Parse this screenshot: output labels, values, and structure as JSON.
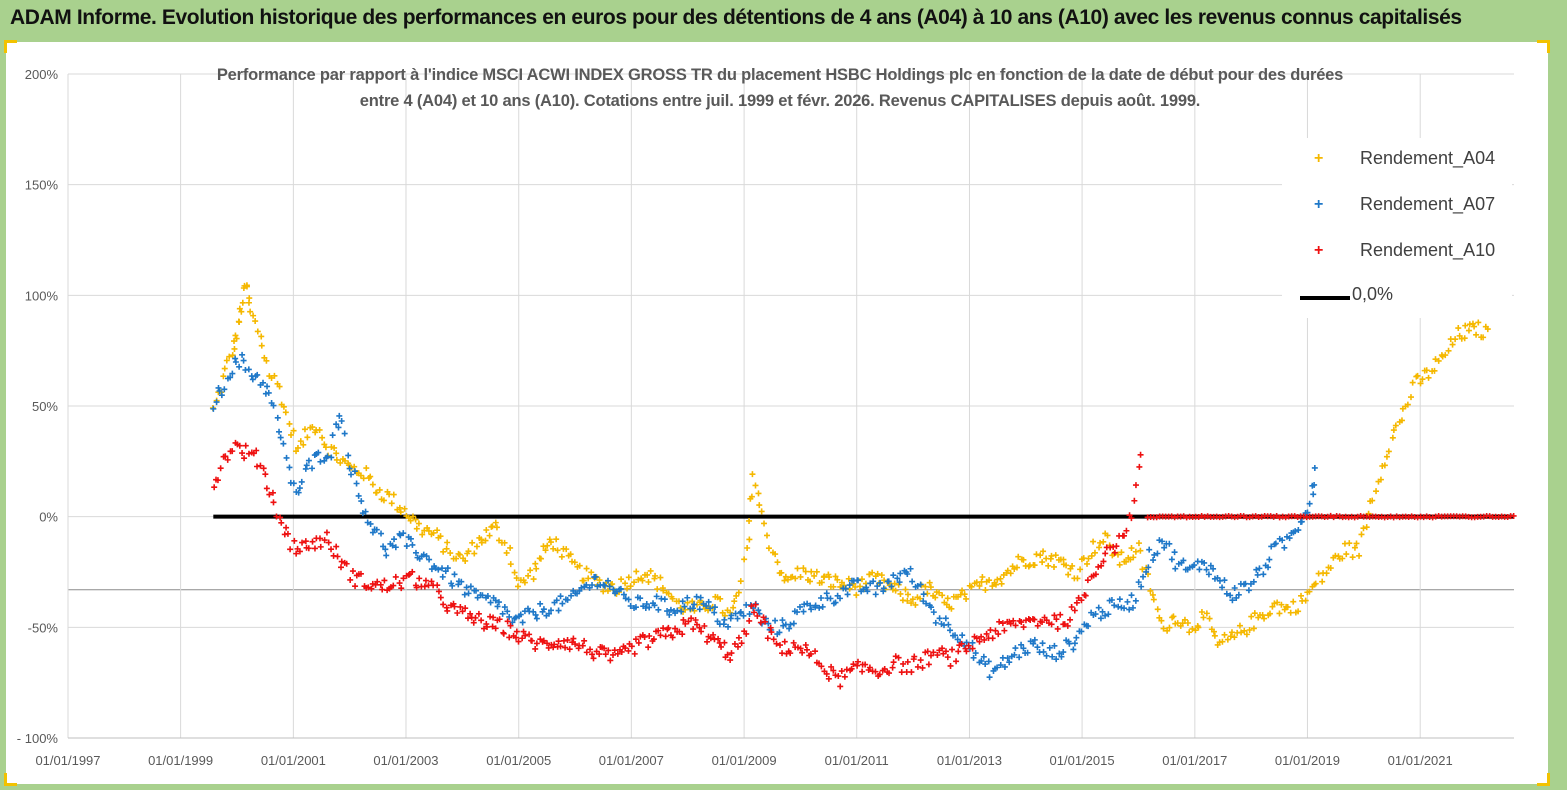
{
  "header": {
    "title": "ADAM Informe. Evolution historique des performances en euros pour des détentions de 4 ans (A04) à 10 ans (A10) avec les revenus connus capitalisés"
  },
  "colors": {
    "header_bg": "#a9d18e",
    "A04": "#f5b800",
    "A07": "#1f78c8",
    "A10": "#ee1111",
    "zero_line": "#000000"
  },
  "chart_data": {
    "type": "scatter",
    "title_line1": "Performance par rapport à l'indice MSCI ACWI INDEX GROSS TR  du placement HSBC Holdings plc en fonction de la date de début pour des durées",
    "title_line2": "entre 4 (A04) et 10 ans (A10). Cotations entre juil. 1999 et févr. 2026. Revenus CAPITALISES depuis août. 1999.",
    "xlabel": "",
    "ylabel": "",
    "y_ticks": [
      "200%",
      "150%",
      "100%",
      "50%",
      "0%",
      "-50%",
      "- 100%"
    ],
    "ylim": [
      -100,
      200
    ],
    "x_ticks": [
      "01/01/1997",
      "01/01/1999",
      "01/01/2001",
      "01/01/2003",
      "01/01/2005",
      "01/01/2007",
      "01/01/2009",
      "01/01/2011",
      "01/01/2013",
      "01/01/2015",
      "01/01/2017",
      "01/01/2019",
      "01/01/2021"
    ],
    "xlim": [
      "1997-01-01",
      "2022-09-01"
    ],
    "grid": "vertical and horizontal",
    "legend_position": "top-right",
    "series": [
      {
        "name": "Rendement_A04",
        "marker": "+",
        "points": [
          [
            "1999-08-01",
            48
          ],
          [
            "1999-10-01",
            62
          ],
          [
            "1999-12-01",
            75
          ],
          [
            "2000-01-01",
            82
          ],
          [
            "2000-02-01",
            95
          ],
          [
            "2000-03-01",
            105
          ],
          [
            "2000-04-01",
            92
          ],
          [
            "2000-06-01",
            82
          ],
          [
            "2000-08-01",
            65
          ],
          [
            "2000-10-01",
            58
          ],
          [
            "2000-12-01",
            42
          ],
          [
            "2001-02-01",
            30
          ],
          [
            "2001-04-01",
            38
          ],
          [
            "2001-06-01",
            42
          ],
          [
            "2001-08-01",
            32
          ],
          [
            "2001-10-01",
            28
          ],
          [
            "2002-01-01",
            22
          ],
          [
            "2002-04-01",
            20
          ],
          [
            "2002-07-01",
            12
          ],
          [
            "2002-10-01",
            8
          ],
          [
            "2003-01-01",
            2
          ],
          [
            "2003-04-01",
            -5
          ],
          [
            "2003-07-01",
            -8
          ],
          [
            "2003-10-01",
            -15
          ],
          [
            "2004-01-01",
            -20
          ],
          [
            "2004-04-01",
            -12
          ],
          [
            "2004-08-01",
            -5
          ],
          [
            "2004-11-01",
            -15
          ],
          [
            "2005-01-01",
            -32
          ],
          [
            "2005-04-01",
            -25
          ],
          [
            "2005-08-01",
            -10
          ],
          [
            "2005-11-01",
            -18
          ],
          [
            "2006-02-01",
            -25
          ],
          [
            "2006-06-01",
            -30
          ],
          [
            "2006-10-01",
            -32
          ],
          [
            "2007-01-01",
            -28
          ],
          [
            "2007-04-01",
            -25
          ],
          [
            "2007-08-01",
            -32
          ],
          [
            "2007-11-01",
            -40
          ],
          [
            "2008-03-01",
            -42
          ],
          [
            "2008-07-01",
            -38
          ],
          [
            "2008-10-01",
            -45
          ],
          [
            "2008-12-01",
            -35
          ],
          [
            "2009-02-01",
            -10
          ],
          [
            "2009-03-01",
            20
          ],
          [
            "2009-05-01",
            0
          ],
          [
            "2009-07-01",
            -15
          ],
          [
            "2009-10-01",
            -30
          ],
          [
            "2010-01-01",
            -25
          ],
          [
            "2010-05-01",
            -28
          ],
          [
            "2010-09-01",
            -30
          ],
          [
            "2011-01-01",
            -32
          ],
          [
            "2011-05-01",
            -28
          ],
          [
            "2011-09-01",
            -33
          ],
          [
            "2012-01-01",
            -38
          ],
          [
            "2012-04-01",
            -32
          ],
          [
            "2012-08-01",
            -40
          ],
          [
            "2012-12-01",
            -36
          ],
          [
            "2013-04-01",
            -30
          ],
          [
            "2013-08-01",
            -27
          ],
          [
            "2013-12-01",
            -20
          ],
          [
            "2014-04-01",
            -18
          ],
          [
            "2014-08-01",
            -20
          ],
          [
            "2014-12-01",
            -25
          ],
          [
            "2015-03-01",
            -15
          ],
          [
            "2015-06-01",
            -10
          ],
          [
            "2015-09-01",
            -20
          ],
          [
            "2016-01-01",
            -15
          ],
          [
            "2016-04-01",
            -35
          ],
          [
            "2016-06-01",
            -50
          ],
          [
            "2016-09-01",
            -45
          ],
          [
            "2016-12-01",
            -50
          ],
          [
            "2017-03-01",
            -45
          ],
          [
            "2017-06-01",
            -58
          ],
          [
            "2017-09-01",
            -55
          ],
          [
            "2017-12-01",
            -50
          ],
          [
            "2018-03-01",
            -45
          ],
          [
            "2018-06-01",
            -40
          ],
          [
            "2018-09-01",
            -42
          ],
          [
            "2018-12-01",
            -38
          ],
          [
            "2019-03-01",
            -30
          ],
          [
            "2019-06-01",
            -22
          ],
          [
            "2019-09-01",
            -15
          ],
          [
            "2019-12-01",
            -15
          ],
          [
            "2020-03-01",
            10
          ],
          [
            "2020-06-01",
            30
          ],
          [
            "2020-09-01",
            45
          ],
          [
            "2020-12-01",
            60
          ],
          [
            "2021-03-01",
            65
          ],
          [
            "2021-06-01",
            72
          ],
          [
            "2021-09-01",
            82
          ],
          [
            "2022-01-01",
            85
          ],
          [
            "2022-04-01",
            82
          ]
        ]
      },
      {
        "name": "Rendement_A07",
        "marker": "+",
        "points": [
          [
            "1999-08-01",
            52
          ],
          [
            "1999-10-01",
            58
          ],
          [
            "1999-12-01",
            68
          ],
          [
            "2000-02-01",
            70
          ],
          [
            "2000-04-01",
            65
          ],
          [
            "2000-06-01",
            62
          ],
          [
            "2000-08-01",
            55
          ],
          [
            "2000-10-01",
            40
          ],
          [
            "2000-12-01",
            20
          ],
          [
            "2001-02-01",
            10
          ],
          [
            "2001-04-01",
            22
          ],
          [
            "2001-07-01",
            28
          ],
          [
            "2001-09-01",
            30
          ],
          [
            "2001-11-01",
            48
          ],
          [
            "2002-01-01",
            25
          ],
          [
            "2002-03-01",
            10
          ],
          [
            "2002-06-01",
            -5
          ],
          [
            "2002-09-01",
            -15
          ],
          [
            "2002-12-01",
            -10
          ],
          [
            "2003-03-01",
            -15
          ],
          [
            "2003-06-01",
            -20
          ],
          [
            "2003-09-01",
            -25
          ],
          [
            "2003-12-01",
            -30
          ],
          [
            "2004-03-01",
            -35
          ],
          [
            "2004-06-01",
            -38
          ],
          [
            "2004-09-01",
            -40
          ],
          [
            "2004-12-01",
            -48
          ],
          [
            "2005-03-01",
            -45
          ],
          [
            "2005-06-01",
            -42
          ],
          [
            "2005-09-01",
            -40
          ],
          [
            "2005-12-01",
            -38
          ],
          [
            "2006-03-01",
            -32
          ],
          [
            "2006-06-01",
            -28
          ],
          [
            "2006-09-01",
            -32
          ],
          [
            "2006-12-01",
            -38
          ],
          [
            "2007-03-01",
            -40
          ],
          [
            "2007-06-01",
            -38
          ],
          [
            "2007-09-01",
            -42
          ],
          [
            "2007-12-01",
            -40
          ],
          [
            "2008-03-01",
            -38
          ],
          [
            "2008-06-01",
            -42
          ],
          [
            "2008-09-01",
            -48
          ],
          [
            "2008-12-01",
            -45
          ],
          [
            "2009-03-01",
            -40
          ],
          [
            "2009-06-01",
            -50
          ],
          [
            "2009-09-01",
            -50
          ],
          [
            "2009-12-01",
            -45
          ],
          [
            "2010-03-01",
            -40
          ],
          [
            "2010-06-01",
            -38
          ],
          [
            "2010-09-01",
            -35
          ],
          [
            "2010-12-01",
            -32
          ],
          [
            "2011-03-01",
            -32
          ],
          [
            "2011-06-01",
            -33
          ],
          [
            "2011-09-01",
            -28
          ],
          [
            "2011-12-01",
            -25
          ],
          [
            "2012-03-01",
            -35
          ],
          [
            "2012-06-01",
            -45
          ],
          [
            "2012-09-01",
            -50
          ],
          [
            "2012-12-01",
            -55
          ],
          [
            "2013-03-01",
            -65
          ],
          [
            "2013-06-01",
            -70
          ],
          [
            "2013-09-01",
            -65
          ],
          [
            "2013-12-01",
            -60
          ],
          [
            "2014-03-01",
            -58
          ],
          [
            "2014-06-01",
            -62
          ],
          [
            "2014-09-01",
            -60
          ],
          [
            "2014-12-01",
            -55
          ],
          [
            "2015-03-01",
            -45
          ],
          [
            "2015-06-01",
            -42
          ],
          [
            "2015-09-01",
            -40
          ],
          [
            "2015-12-01",
            -38
          ],
          [
            "2016-03-01",
            -20
          ],
          [
            "2016-06-01",
            -10
          ],
          [
            "2016-09-01",
            -20
          ],
          [
            "2016-12-01",
            -25
          ],
          [
            "2017-03-01",
            -20
          ],
          [
            "2017-06-01",
            -28
          ],
          [
            "2017-09-01",
            -35
          ],
          [
            "2017-12-01",
            -32
          ],
          [
            "2018-03-01",
            -25
          ],
          [
            "2018-06-01",
            -15
          ],
          [
            "2018-09-01",
            -10
          ],
          [
            "2018-12-01",
            0
          ],
          [
            "2019-02-01",
            10
          ],
          [
            "2019-03-01",
            25
          ]
        ]
      },
      {
        "name": "Rendement_A10",
        "marker": "+",
        "points": [
          [
            "1999-08-01",
            15
          ],
          [
            "1999-10-01",
            25
          ],
          [
            "1999-12-01",
            32
          ],
          [
            "2000-02-01",
            30
          ],
          [
            "2000-04-01",
            28
          ],
          [
            "2000-06-01",
            25
          ],
          [
            "2000-08-01",
            12
          ],
          [
            "2000-10-01",
            0
          ],
          [
            "2000-12-01",
            -10
          ],
          [
            "2001-02-01",
            -15
          ],
          [
            "2001-05-01",
            -12
          ],
          [
            "2001-08-01",
            -10
          ],
          [
            "2001-11-01",
            -20
          ],
          [
            "2002-02-01",
            -28
          ],
          [
            "2002-05-01",
            -30
          ],
          [
            "2002-08-01",
            -32
          ],
          [
            "2002-11-01",
            -30
          ],
          [
            "2003-02-01",
            -28
          ],
          [
            "2003-05-01",
            -30
          ],
          [
            "2003-08-01",
            -35
          ],
          [
            "2003-11-01",
            -42
          ],
          [
            "2004-02-01",
            -45
          ],
          [
            "2004-06-01",
            -48
          ],
          [
            "2004-10-01",
            -50
          ],
          [
            "2005-02-01",
            -55
          ],
          [
            "2005-06-01",
            -58
          ],
          [
            "2005-10-01",
            -56
          ],
          [
            "2006-02-01",
            -58
          ],
          [
            "2006-06-01",
            -62
          ],
          [
            "2006-10-01",
            -64
          ],
          [
            "2007-02-01",
            -58
          ],
          [
            "2007-06-01",
            -55
          ],
          [
            "2007-10-01",
            -52
          ],
          [
            "2008-02-01",
            -48
          ],
          [
            "2008-06-01",
            -55
          ],
          [
            "2008-10-01",
            -62
          ],
          [
            "2009-01-01",
            -55
          ],
          [
            "2009-03-01",
            -40
          ],
          [
            "2009-06-01",
            -52
          ],
          [
            "2009-09-01",
            -60
          ],
          [
            "2009-12-01",
            -58
          ],
          [
            "2010-03-01",
            -62
          ],
          [
            "2010-06-01",
            -68
          ],
          [
            "2010-09-01",
            -74
          ],
          [
            "2010-12-01",
            -70
          ],
          [
            "2011-03-01",
            -68
          ],
          [
            "2011-06-01",
            -70
          ],
          [
            "2011-09-01",
            -66
          ],
          [
            "2011-12-01",
            -68
          ],
          [
            "2012-03-01",
            -65
          ],
          [
            "2012-06-01",
            -62
          ],
          [
            "2012-09-01",
            -64
          ],
          [
            "2012-12-01",
            -60
          ],
          [
            "2013-03-01",
            -55
          ],
          [
            "2013-06-01",
            -52
          ],
          [
            "2013-09-01",
            -50
          ],
          [
            "2013-12-01",
            -48
          ],
          [
            "2014-03-01",
            -47
          ],
          [
            "2014-06-01",
            -46
          ],
          [
            "2014-09-01",
            -48
          ],
          [
            "2014-12-01",
            -42
          ],
          [
            "2015-03-01",
            -28
          ],
          [
            "2015-06-01",
            -15
          ],
          [
            "2015-09-01",
            -12
          ],
          [
            "2015-12-01",
            5
          ],
          [
            "2016-02-01",
            38
          ]
        ]
      },
      {
        "name": "0,0%",
        "type": "line",
        "points": [
          [
            "1999-08-01",
            0
          ],
          [
            "2022-09-01",
            0
          ]
        ]
      }
    ],
    "zero_tail_series": "Rendement_A10",
    "zero_tail_range": [
      "2016-03-01",
      "2022-09-01"
    ]
  },
  "legend": {
    "items": [
      {
        "label": "Rendement_A04",
        "marker": "+"
      },
      {
        "label": "Rendement_A07",
        "marker": "+"
      },
      {
        "label": "Rendement_A10",
        "marker": "+"
      },
      {
        "label": "0,0%",
        "marker": "line"
      }
    ]
  }
}
